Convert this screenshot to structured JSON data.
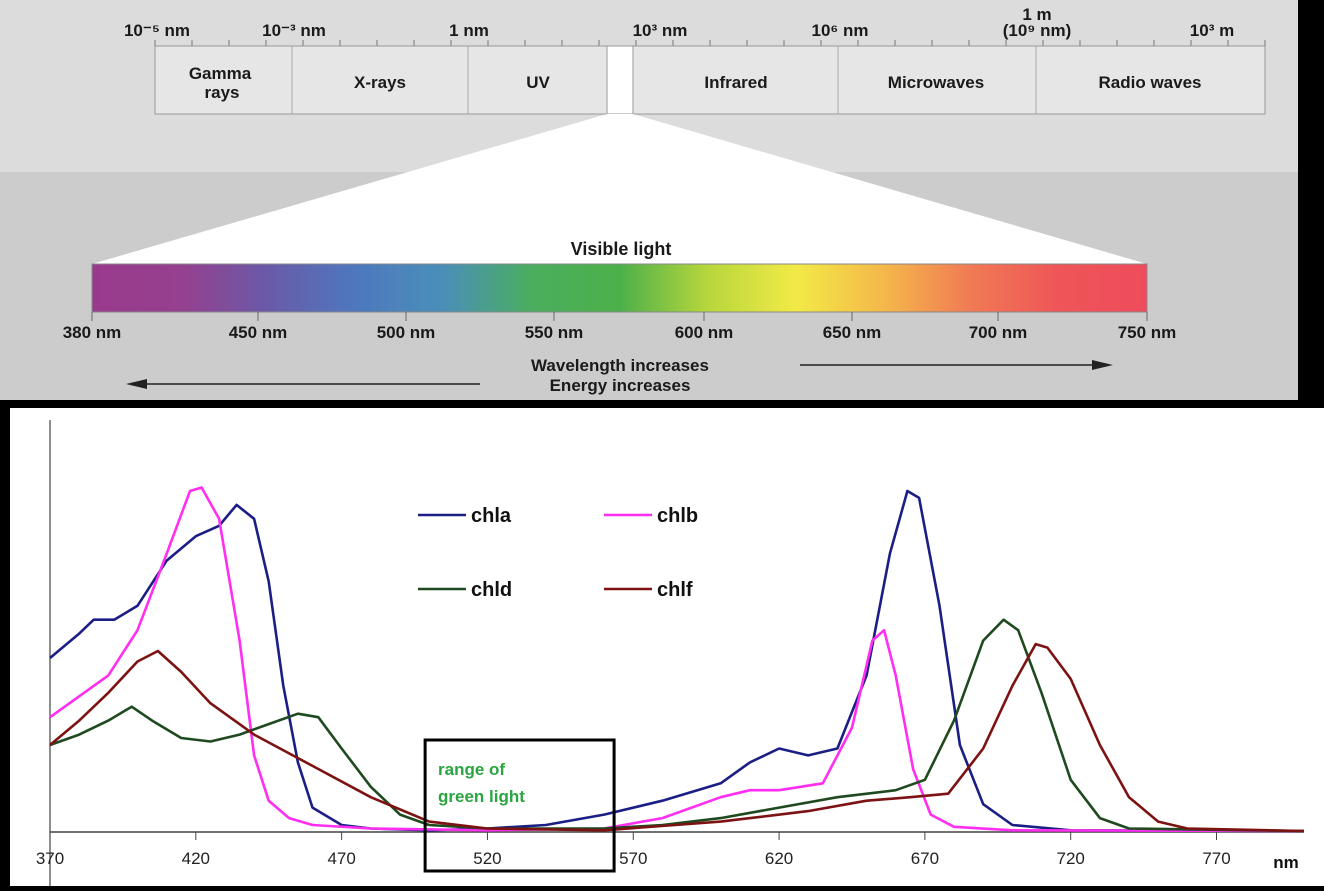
{
  "spectrum_panel": {
    "scale_labels": [
      "10⁻⁵ nm",
      "10⁻³ nm",
      "1 nm",
      "10³ nm",
      "10⁶ nm",
      "1 m",
      "(10⁹ nm)",
      "10³ m"
    ],
    "bands": [
      "Gamma",
      "rays",
      "X-rays",
      "UV",
      "Infrared",
      "Microwaves",
      "Radio waves"
    ],
    "visible_title": "Visible light",
    "visible_ticks": [
      "380 nm",
      "450 nm",
      "500 nm",
      "550 nm",
      "600 nm",
      "650 nm",
      "700 nm",
      "750 nm"
    ],
    "wavelength_caption": "Wavelength increases",
    "energy_caption": "Energy increases",
    "gradient_colors": [
      "#9a3a8e",
      "#96408f",
      "#6a5aa8",
      "#4d78be",
      "#4a8fb8",
      "#4aae5e",
      "#4cb04a",
      "#b7d63c",
      "#f2ea46",
      "#f5b84a",
      "#f07a54",
      "#ee5558",
      "#ee4c5c"
    ]
  },
  "chart_data": {
    "type": "line",
    "title": "",
    "xlabel": "nm",
    "ylabel": "",
    "xlim": [
      370,
      800
    ],
    "ylim": [
      0,
      1
    ],
    "x_ticks": [
      370,
      420,
      470,
      520,
      570,
      620,
      670,
      720,
      770
    ],
    "legend_position": "top-center",
    "series": [
      {
        "name": "chla",
        "color": "#1b1f85",
        "points": [
          [
            370,
            0.5
          ],
          [
            380,
            0.57
          ],
          [
            385,
            0.61
          ],
          [
            392,
            0.61
          ],
          [
            400,
            0.65
          ],
          [
            410,
            0.78
          ],
          [
            420,
            0.85
          ],
          [
            428,
            0.88
          ],
          [
            434,
            0.94
          ],
          [
            440,
            0.9
          ],
          [
            445,
            0.72
          ],
          [
            450,
            0.42
          ],
          [
            455,
            0.2
          ],
          [
            460,
            0.07
          ],
          [
            470,
            0.02
          ],
          [
            480,
            0.01
          ],
          [
            500,
            0.005
          ],
          [
            520,
            0.01
          ],
          [
            540,
            0.02
          ],
          [
            560,
            0.05
          ],
          [
            580,
            0.09
          ],
          [
            600,
            0.14
          ],
          [
            610,
            0.2
          ],
          [
            620,
            0.24
          ],
          [
            630,
            0.22
          ],
          [
            640,
            0.24
          ],
          [
            650,
            0.45
          ],
          [
            658,
            0.8
          ],
          [
            664,
            0.98
          ],
          [
            668,
            0.96
          ],
          [
            675,
            0.65
          ],
          [
            682,
            0.25
          ],
          [
            690,
            0.08
          ],
          [
            700,
            0.02
          ],
          [
            720,
            0.005
          ],
          [
            800,
            0.003
          ]
        ]
      },
      {
        "name": "chlb",
        "color": "#ff2ef0",
        "points": [
          [
            370,
            0.33
          ],
          [
            380,
            0.39
          ],
          [
            390,
            0.45
          ],
          [
            400,
            0.58
          ],
          [
            410,
            0.8
          ],
          [
            418,
            0.98
          ],
          [
            422,
            0.99
          ],
          [
            428,
            0.9
          ],
          [
            435,
            0.55
          ],
          [
            440,
            0.22
          ],
          [
            445,
            0.09
          ],
          [
            452,
            0.04
          ],
          [
            460,
            0.02
          ],
          [
            480,
            0.01
          ],
          [
            520,
            0.005
          ],
          [
            560,
            0.01
          ],
          [
            580,
            0.04
          ],
          [
            600,
            0.1
          ],
          [
            610,
            0.12
          ],
          [
            620,
            0.12
          ],
          [
            635,
            0.14
          ],
          [
            645,
            0.3
          ],
          [
            652,
            0.55
          ],
          [
            656,
            0.58
          ],
          [
            660,
            0.45
          ],
          [
            666,
            0.18
          ],
          [
            672,
            0.05
          ],
          [
            680,
            0.015
          ],
          [
            700,
            0.005
          ],
          [
            800,
            0.003
          ]
        ]
      },
      {
        "name": "chld",
        "color": "#1f4a1f",
        "points": [
          [
            370,
            0.25
          ],
          [
            380,
            0.28
          ],
          [
            390,
            0.32
          ],
          [
            398,
            0.36
          ],
          [
            405,
            0.32
          ],
          [
            415,
            0.27
          ],
          [
            425,
            0.26
          ],
          [
            435,
            0.28
          ],
          [
            445,
            0.31
          ],
          [
            455,
            0.34
          ],
          [
            462,
            0.33
          ],
          [
            470,
            0.24
          ],
          [
            480,
            0.13
          ],
          [
            490,
            0.05
          ],
          [
            500,
            0.02
          ],
          [
            520,
            0.01
          ],
          [
            560,
            0.01
          ],
          [
            580,
            0.02
          ],
          [
            600,
            0.04
          ],
          [
            620,
            0.07
          ],
          [
            640,
            0.1
          ],
          [
            660,
            0.12
          ],
          [
            670,
            0.15
          ],
          [
            680,
            0.32
          ],
          [
            690,
            0.55
          ],
          [
            697,
            0.61
          ],
          [
            702,
            0.58
          ],
          [
            710,
            0.4
          ],
          [
            720,
            0.15
          ],
          [
            730,
            0.04
          ],
          [
            740,
            0.01
          ],
          [
            800,
            0.003
          ]
        ]
      },
      {
        "name": "chlf",
        "color": "#7d1212",
        "points": [
          [
            370,
            0.25
          ],
          [
            380,
            0.32
          ],
          [
            390,
            0.4
          ],
          [
            400,
            0.49
          ],
          [
            407,
            0.52
          ],
          [
            415,
            0.46
          ],
          [
            425,
            0.37
          ],
          [
            440,
            0.28
          ],
          [
            460,
            0.19
          ],
          [
            480,
            0.1
          ],
          [
            500,
            0.03
          ],
          [
            520,
            0.01
          ],
          [
            560,
            0.005
          ],
          [
            600,
            0.03
          ],
          [
            630,
            0.06
          ],
          [
            650,
            0.09
          ],
          [
            665,
            0.1
          ],
          [
            678,
            0.11
          ],
          [
            690,
            0.24
          ],
          [
            700,
            0.42
          ],
          [
            708,
            0.54
          ],
          [
            712,
            0.53
          ],
          [
            720,
            0.44
          ],
          [
            730,
            0.25
          ],
          [
            740,
            0.1
          ],
          [
            750,
            0.03
          ],
          [
            760,
            0.01
          ],
          [
            800,
            0.003
          ]
        ]
      }
    ],
    "annotations": [
      {
        "text_lines": [
          "range of",
          "green light"
        ],
        "x_range": [
          500,
          560
        ]
      }
    ]
  }
}
